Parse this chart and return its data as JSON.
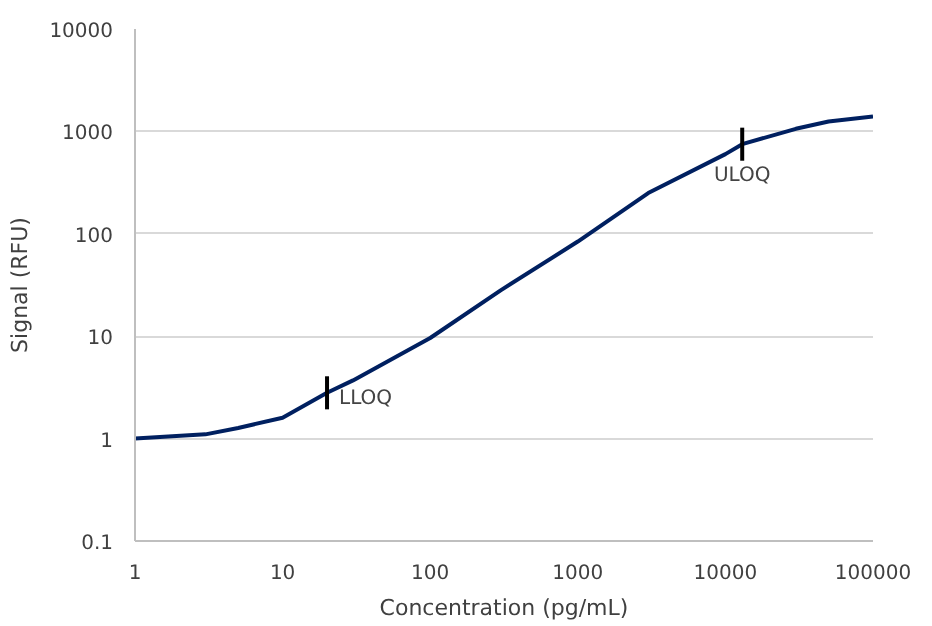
{
  "chart_data": {
    "type": "line",
    "xlabel": "Concentration (pg/mL)",
    "ylabel": "Signal (RFU)",
    "log": "xy",
    "grid": "y",
    "marker": "none",
    "line_style": "solid",
    "xlim": [
      1,
      100000
    ],
    "xticks": [
      1,
      10,
      100,
      1000,
      10000,
      100000
    ],
    "ylim": [
      0.1,
      10000
    ],
    "yticks": [
      0.1,
      1,
      10,
      100,
      1000,
      10000
    ],
    "series": [
      {
        "color": "#002060",
        "x": [
          1,
          3,
          5,
          10,
          20,
          30,
          100,
          300,
          1000,
          3000,
          10000,
          13000,
          30000,
          50000,
          100000
        ],
        "values": [
          1,
          1.1,
          1.27,
          1.6,
          2.8,
          3.7,
          9.6,
          28,
          84,
          250,
          600,
          750,
          1060,
          1250,
          1400
        ]
      }
    ],
    "annotations": [
      {
        "text": "LLOQ",
        "x": 20,
        "y": 2.8
      },
      {
        "text": "ULOQ",
        "x": 13000,
        "y": 750
      }
    ]
  }
}
